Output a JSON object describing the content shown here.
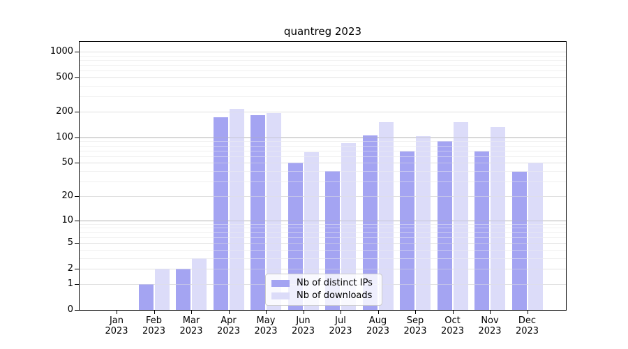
{
  "chart_data": {
    "type": "bar",
    "title": "quantreg 2023",
    "categories": [
      "Jan 2023",
      "Feb 2023",
      "Mar 2023",
      "Apr 2023",
      "May 2023",
      "Jun 2023",
      "Jul 2023",
      "Aug 2023",
      "Sep 2023",
      "Oct 2023",
      "Nov 2023",
      "Dec 2023"
    ],
    "series": [
      {
        "name": "Nb of distinct IPs",
        "color": "#a4a4f2",
        "values": [
          0,
          1,
          2,
          172,
          182,
          50,
          40,
          105,
          68,
          91,
          68,
          39
        ]
      },
      {
        "name": "Nb of downloads",
        "color": "#dcdcf9",
        "values": [
          0,
          2,
          3,
          215,
          192,
          67,
          86,
          150,
          103,
          150,
          132,
          50
        ]
      }
    ],
    "xlabel": "",
    "ylabel": "",
    "y_scale": "log1p",
    "ylim": [
      0,
      1330
    ],
    "y_ticks": [
      0,
      1,
      2,
      5,
      10,
      20,
      50,
      100,
      200,
      500,
      1000
    ],
    "y_minor_ticks": [
      3,
      4,
      6,
      7,
      8,
      9,
      30,
      40,
      60,
      70,
      80,
      90,
      300,
      400,
      600,
      700,
      800,
      900
    ],
    "grid": "horizontal",
    "grid_over_bars": true,
    "decade_gridlines": [
      10,
      100
    ],
    "legend_position": "lower-center",
    "colors": {
      "grid_minor": "#f0f0f0",
      "grid_major": "#e0e0e0",
      "grid_decade": "#b0b0b0",
      "axis": "#000000"
    }
  }
}
